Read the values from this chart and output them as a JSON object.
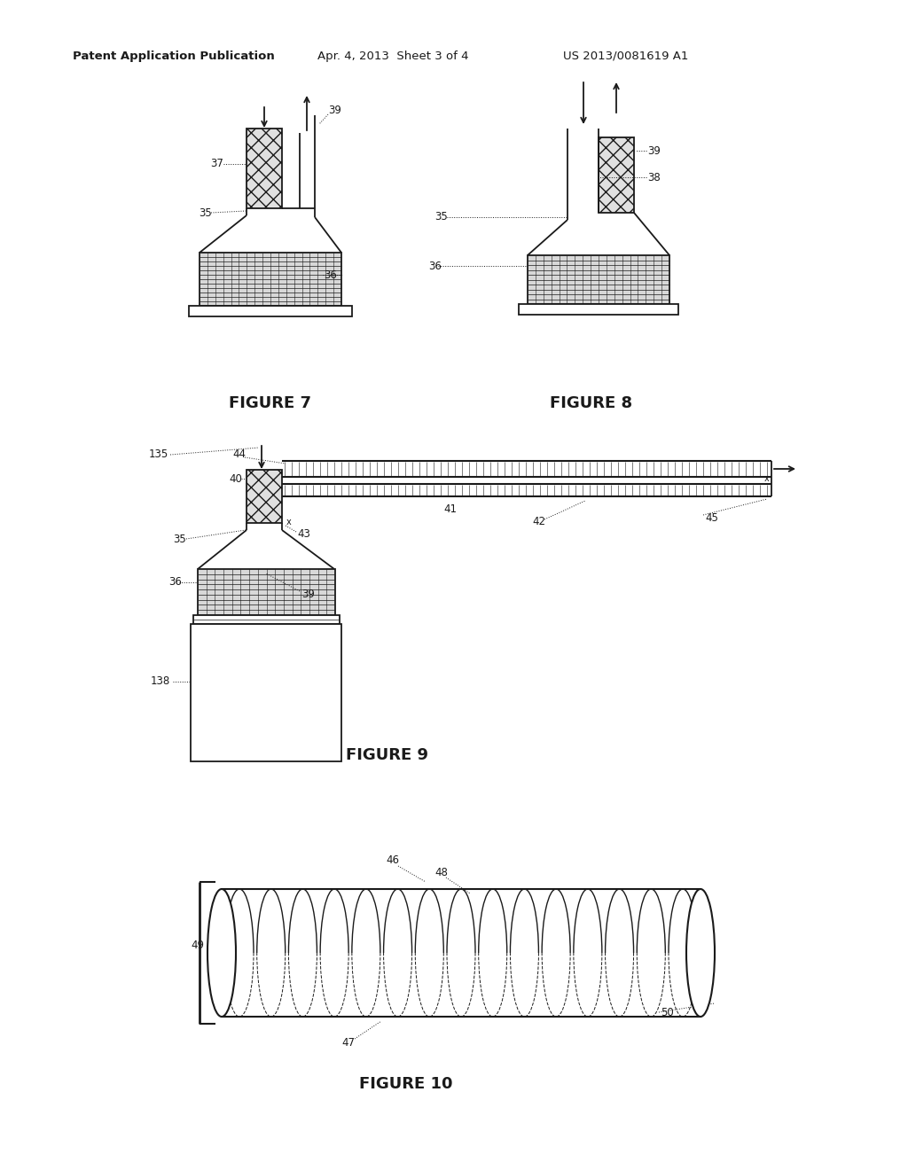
{
  "bg_color": "#ffffff",
  "header_text": "Patent Application Publication",
  "header_date": "Apr. 4, 2013  Sheet 3 of 4",
  "header_patent": "US 2013/0081619 A1",
  "fig7_label": "FIGURE 7",
  "fig8_label": "FIGURE 8",
  "fig9_label": "FIGURE 9",
  "fig10_label": "FIGURE 10",
  "line_color": "#1a1a1a",
  "hatch_color": "#555555",
  "filter_color": "#cccccc"
}
